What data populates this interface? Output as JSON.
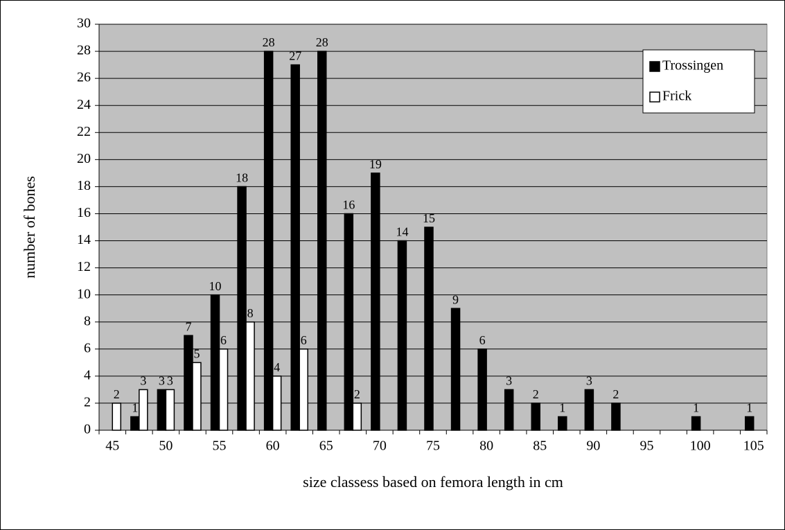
{
  "chart_data": {
    "type": "bar",
    "x_label": "size classess based on femora length in cm",
    "y_label": "number of bones",
    "categories": [
      "45",
      null,
      "50",
      null,
      "55",
      null,
      "60",
      null,
      "65",
      null,
      "70",
      null,
      "75",
      null,
      "80",
      null,
      "85",
      null,
      "90",
      null,
      "95",
      null,
      "100",
      null,
      "105"
    ],
    "series": [
      {
        "name": "Trossingen",
        "color": "#000000",
        "values": [
          0,
          1,
          3,
          7,
          10,
          18,
          28,
          27,
          28,
          16,
          19,
          14,
          15,
          9,
          6,
          3,
          2,
          1,
          3,
          2,
          0,
          0,
          1,
          0,
          1
        ]
      },
      {
        "name": "Frick",
        "color": "#ffffff",
        "values": [
          2,
          3,
          3,
          5,
          6,
          8,
          4,
          6,
          0,
          2,
          0,
          0,
          0,
          0,
          0,
          0,
          0,
          0,
          0,
          0,
          0,
          0,
          0,
          0,
          0
        ]
      }
    ],
    "ylim": [
      0,
      30
    ],
    "yticks": [
      0,
      2,
      4,
      6,
      8,
      10,
      12,
      14,
      16,
      18,
      20,
      22,
      24,
      26,
      28,
      30
    ],
    "grid": true,
    "legend": "upper right",
    "plot_background": "#c0c0c0"
  }
}
